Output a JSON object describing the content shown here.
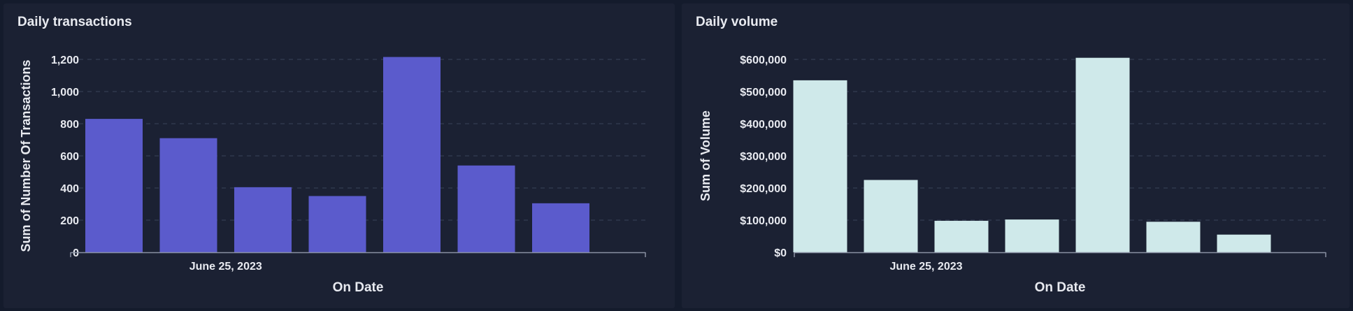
{
  "colors": {
    "background": "#141b2c",
    "panel": "#1b2133",
    "text": "#e8eaf0",
    "grid": "#3a4258",
    "axis": "#8a91a3",
    "transactions_bar": "#5b5bcc",
    "volume_bar": "#cfe9ea"
  },
  "chart_data": [
    {
      "type": "bar",
      "title": "Daily transactions",
      "xlabel": "On Date",
      "ylabel": "Sum of Number Of Transactions",
      "x_tick_label": "June 25, 2023",
      "ylim": [
        0,
        1200
      ],
      "y_ticks": [
        0,
        200,
        400,
        600,
        800,
        1000,
        1200
      ],
      "y_tick_labels": [
        "0",
        "200",
        "400",
        "600",
        "800",
        "1,000",
        "1,200"
      ],
      "grid": true,
      "bar_color": "#5b5bcc",
      "values": [
        830,
        710,
        405,
        350,
        1215,
        540,
        305
      ]
    },
    {
      "type": "bar",
      "title": "Daily volume",
      "xlabel": "On Date",
      "ylabel": "Sum of Volume",
      "x_tick_label": "June 25, 2023",
      "ylim": [
        0,
        600000
      ],
      "y_ticks": [
        0,
        100000,
        200000,
        300000,
        400000,
        500000,
        600000
      ],
      "y_tick_labels": [
        "$0",
        "$100,000",
        "$200,000",
        "$300,000",
        "$400,000",
        "$500,000",
        "$600,000"
      ],
      "grid": true,
      "bar_color": "#cfe9ea",
      "values": [
        535000,
        225000,
        98000,
        102000,
        605000,
        95000,
        55000
      ]
    }
  ]
}
